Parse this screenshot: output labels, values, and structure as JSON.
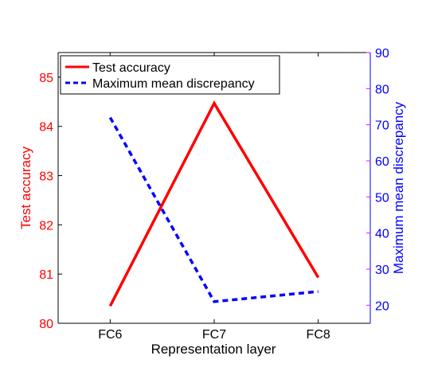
{
  "chart_data": {
    "type": "line",
    "categories": [
      "FC6",
      "FC7",
      "FC8"
    ],
    "xlabel": "Representation layer",
    "y_left": {
      "label": "Test accuracy",
      "lim": [
        80,
        85.5
      ],
      "ticks": [
        80,
        81,
        82,
        83,
        84,
        85
      ],
      "color": "#ff0000"
    },
    "y_right": {
      "label": "Maximum mean discrepancy",
      "lim": [
        15,
        90
      ],
      "ticks": [
        20,
        30,
        40,
        50,
        60,
        70,
        80,
        90
      ],
      "color": "#0000ff"
    },
    "series": [
      {
        "name": "Test accuracy",
        "axis": "left",
        "values": [
          80.35,
          84.47,
          80.93
        ],
        "color": "#ff0000",
        "style": "solid"
      },
      {
        "name": "Maximum mean discrepancy",
        "axis": "right",
        "values": [
          72,
          21,
          23.8
        ],
        "color": "#0000ff",
        "style": "dashed"
      }
    ],
    "legend_position": "top-left",
    "grid": false,
    "right_tick_marks_color": "#ff00ff"
  }
}
